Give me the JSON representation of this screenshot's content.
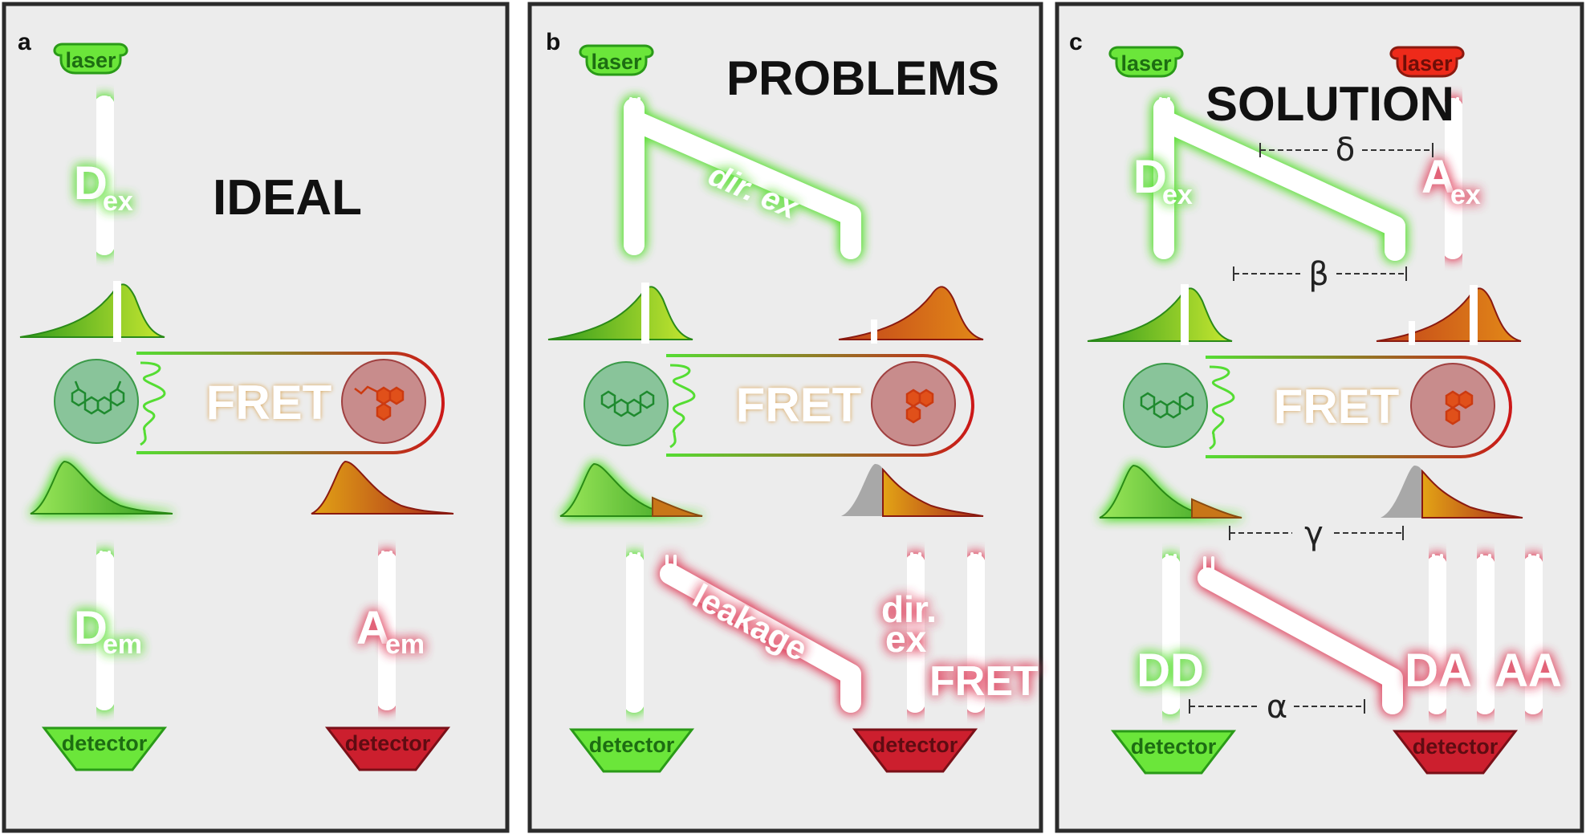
{
  "colors": {
    "green": "#66dd33",
    "green_dark": "#2f9a1c",
    "red": "#cc1f2e",
    "red_dark": "#7a1018",
    "orange": "#d97a12",
    "panel_bg": "#ececec"
  },
  "panels": [
    {
      "letter": "a",
      "heading": "IDEAL",
      "laser_labels": [
        "laser"
      ],
      "detector_labels": [
        "detector",
        "detector"
      ],
      "beams": {
        "excitation": {
          "main": "D",
          "sub": "ex"
        },
        "donor_emission": {
          "main": "D",
          "sub": "em"
        },
        "acceptor_emission": {
          "main": "A",
          "sub": "em"
        }
      },
      "fret_label": "FRET"
    },
    {
      "letter": "b",
      "heading": "PROBLEMS",
      "laser_labels": [
        "laser"
      ],
      "detector_labels": [
        "detector",
        "detector"
      ],
      "beam_labels": {
        "direct_excitation": "dir. ex",
        "leakage": "leakage",
        "dir_line1": "dir.",
        "dir_line2": "ex",
        "fret_channel": "FRET"
      },
      "fret_label": "FRET"
    },
    {
      "letter": "c",
      "heading": "SOLUTION",
      "laser_labels": [
        "laser",
        "laser"
      ],
      "detector_labels": [
        "detector",
        "detector"
      ],
      "beams": {
        "donor_excitation": {
          "main": "D",
          "sub": "ex"
        },
        "acceptor_excitation": {
          "main": "A",
          "sub": "ex"
        }
      },
      "channels": [
        "DD",
        "DA",
        "AA"
      ],
      "factors": {
        "delta": "δ",
        "beta": "β",
        "gamma": "γ",
        "alpha": "α"
      },
      "fret_label": "FRET"
    }
  ]
}
